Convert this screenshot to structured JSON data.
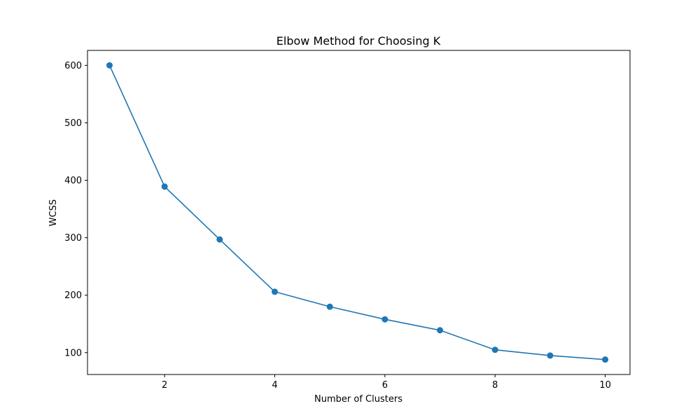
{
  "chart_data": {
    "type": "line",
    "title": "Elbow Method for Choosing K",
    "xlabel": "Number of Clusters",
    "ylabel": "WCSS",
    "x": [
      1,
      2,
      3,
      4,
      5,
      6,
      7,
      8,
      9,
      10
    ],
    "series": [
      {
        "values": [
          600,
          389,
          297,
          206,
          180,
          158,
          139,
          105,
          95,
          88
        ]
      }
    ],
    "xlim": [
      0.6,
      10.45
    ],
    "ylim": [
      62,
      626
    ],
    "xticks": [
      2,
      4,
      6,
      8,
      10
    ],
    "yticks": [
      100,
      200,
      300,
      400,
      500,
      600
    ],
    "markers": true,
    "grid": false,
    "colors": {
      "line": "#1f77b4",
      "marker": "#1f77b4"
    }
  }
}
